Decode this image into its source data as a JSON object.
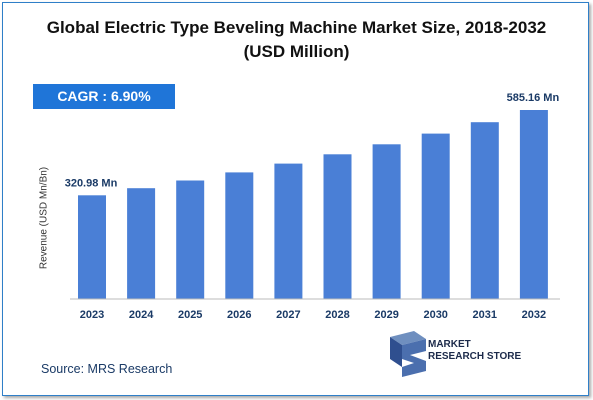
{
  "title_line1": "Global Electric Type Beveling Machine Market Size, 2018-2032",
  "title_line2": "(USD Million)",
  "cagr_label": "CAGR : 6.90%",
  "source": "Source: MRS Research",
  "logo": {
    "line1": "MARKET",
    "line2": "RESEARCH STORE"
  },
  "colors": {
    "bar": "#4a7fd6",
    "cagr_box": "#1f75d8",
    "frame": "#2f7fc8"
  },
  "chart_data": {
    "type": "bar",
    "title": "Global Electric Type Beveling Machine Market Size, 2018-2032 (USD Million)",
    "ylabel": "Revenue (USD Mn/Bn)",
    "xlabel": "",
    "categories": [
      "2023",
      "2024",
      "2025",
      "2026",
      "2027",
      "2028",
      "2029",
      "2030",
      "2031",
      "2032"
    ],
    "values": [
      320.98,
      343.1,
      366.8,
      392.1,
      419.1,
      448.0,
      478.9,
      512.0,
      547.4,
      585.16
    ],
    "data_labels": [
      {
        "index": 0,
        "text": "320.98 Mn"
      },
      {
        "index": 9,
        "text": "585.16 Mn"
      }
    ],
    "grid": false,
    "legend": "none"
  }
}
